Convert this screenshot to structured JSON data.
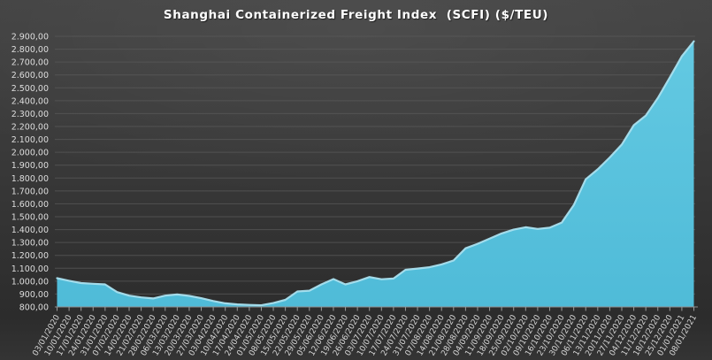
{
  "title": "Shanghai Containerized Freight Index  (SCFI) ($/TEU)",
  "chart_data": {
    "type": "area",
    "title": "Shanghai Containerized Freight Index  (SCFI) ($/TEU)",
    "xlabel": "",
    "ylabel": "",
    "legend": "none",
    "grid": true,
    "number_format": "european (1.234,56)",
    "ylim": [
      800,
      2900
    ],
    "y_tick_step": 100,
    "y_tick_labels": [
      "800,00",
      "900,00",
      "1.000,00",
      "1.100,00",
      "1.200,00",
      "1.300,00",
      "1.400,00",
      "1.500,00",
      "1.600,00",
      "1.700,00",
      "1.800,00",
      "1.900,00",
      "2.000,00",
      "2.100,00",
      "2.200,00",
      "2.300,00",
      "2.400,00",
      "2.500,00",
      "2.600,00",
      "2.700,00",
      "2.800,00",
      "2.900,00"
    ],
    "x": [
      "03/01/2020",
      "10/01/2020",
      "17/01/2020",
      "24/01/2020",
      "31/01/2020",
      "07/02/2020",
      "14/02/2020",
      "21/02/2020",
      "28/02/2020",
      "06/03/2020",
      "13/03/2020",
      "20/03/2020",
      "27/03/2020",
      "03/04/2020",
      "10/04/2020",
      "17/04/2020",
      "24/04/2020",
      "01/05/2020",
      "08/05/2020",
      "15/05/2020",
      "22/05/2020",
      "29/05/2020",
      "05/06/2020",
      "12/06/2020",
      "19/06/2020",
      "26/06/2020",
      "03/07/2020",
      "10/07/2020",
      "17/07/2020",
      "24/07/2020",
      "31/07/2020",
      "07/08/2020",
      "14/08/2020",
      "21/08/2020",
      "28/08/2020",
      "04/09/2020",
      "11/09/2020",
      "18/09/2020",
      "25/09/2020",
      "02/10/2020",
      "09/10/2020",
      "16/10/2020",
      "23/10/2020",
      "30/10/2020",
      "06/11/2020",
      "13/11/2020",
      "20/11/2020",
      "27/11/2020",
      "04/12/2020",
      "11/12/2020",
      "18/12/2020",
      "25/12/2020",
      "01/01/2021",
      "08/01/2021"
    ],
    "series": [
      {
        "name": "SCFI ($/TEU)",
        "values": [
          1023,
          1003,
          985,
          980,
          975,
          915,
          888,
          874,
          866,
          888,
          897,
          886,
          868,
          846,
          828,
          820,
          816,
          813,
          830,
          855,
          920,
          926,
          975,
          1016,
          975,
          1000,
          1032,
          1015,
          1020,
          1088,
          1098,
          1108,
          1130,
          1160,
          1255,
          1290,
          1330,
          1370,
          1400,
          1418,
          1405,
          1415,
          1455,
          1590,
          1790,
          1868,
          1960,
          2060,
          2210,
          2285,
          2420,
          2580,
          2745,
          2861
        ]
      }
    ]
  },
  "style": {
    "area_fill_top": "#63C9E2",
    "area_fill_bottom": "#4FBBD8",
    "area_edge": "#A9E0EF",
    "gridline": "#5a5a5a",
    "axis": "#8f8f8f",
    "tick": "#9a9a9a",
    "title_color": "#ffffff",
    "y_label_color": "#dedede",
    "x_label_color": "#d6d6d6",
    "background_top": "#434343",
    "background_bottom": "#2c2c2c"
  }
}
